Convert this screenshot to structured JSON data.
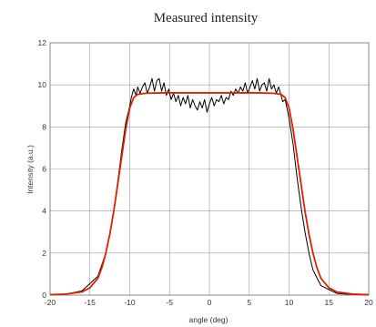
{
  "chart_data": {
    "type": "line",
    "title": "Measured  intensity",
    "xlabel": "angle (deg)",
    "ylabel": "Intensity (a.u.)",
    "xlim": [
      -20,
      20
    ],
    "ylim": [
      0,
      12
    ],
    "xticks": [
      -20,
      -15,
      -10,
      -5,
      0,
      5,
      10,
      15,
      20
    ],
    "yticks": [
      0,
      2,
      4,
      6,
      8,
      10,
      12
    ],
    "grid": true,
    "series": [
      {
        "color": "#000000",
        "x": [
          -20,
          -18,
          -16,
          -14,
          -13,
          -12.5,
          -12,
          -11.5,
          -11,
          -10.5,
          -10,
          -9.8,
          -9.5,
          -9.2,
          -9,
          -8.7,
          -8.4,
          -8.1,
          -7.8,
          -7.5,
          -7.2,
          -6.9,
          -6.6,
          -6.3,
          -6,
          -5.7,
          -5.4,
          -5.1,
          -4.8,
          -4.5,
          -4.2,
          -3.9,
          -3.6,
          -3.3,
          -3,
          -2.7,
          -2.4,
          -2.1,
          -1.8,
          -1.5,
          -1.2,
          -0.9,
          -0.6,
          -0.3,
          0,
          0.3,
          0.6,
          0.9,
          1.2,
          1.5,
          1.8,
          2.1,
          2.4,
          2.7,
          3,
          3.3,
          3.6,
          3.9,
          4.2,
          4.5,
          4.8,
          5.1,
          5.4,
          5.7,
          6,
          6.3,
          6.6,
          6.9,
          7.2,
          7.5,
          7.8,
          8.1,
          8.4,
          8.7,
          9,
          9.2,
          9.5,
          9.8,
          10,
          10.5,
          11,
          11.5,
          12,
          12.5,
          13,
          14,
          16,
          18,
          20
        ],
        "y": [
          0.02,
          0.05,
          0.2,
          0.9,
          2.0,
          2.9,
          4.0,
          5.4,
          6.9,
          8.2,
          9.0,
          9.4,
          9.8,
          9.5,
          9.9,
          9.6,
          9.9,
          10.1,
          9.6,
          9.9,
          10.3,
          9.7,
          10.2,
          10.3,
          9.7,
          10.1,
          9.5,
          9.8,
          9.3,
          9.6,
          9.2,
          9.5,
          9.0,
          9.4,
          9.1,
          9.5,
          8.9,
          9.3,
          9.0,
          8.8,
          9.2,
          8.9,
          9.3,
          8.7,
          9.1,
          9.4,
          9.0,
          9.3,
          9.2,
          9.5,
          9.1,
          9.4,
          9.3,
          9.7,
          9.5,
          9.8,
          9.6,
          9.9,
          9.7,
          10.1,
          9.6,
          9.9,
          10.2,
          9.8,
          10.3,
          9.7,
          10.0,
          10.1,
          9.7,
          10.3,
          9.8,
          10.0,
          9.6,
          9.9,
          9.5,
          9.2,
          9.3,
          8.8,
          8.4,
          7.2,
          5.6,
          4.2,
          3.0,
          2.0,
          1.2,
          0.45,
          0.08,
          0.03,
          0.01
        ]
      },
      {
        "color": "#e02000",
        "x": [
          -20,
          -18,
          -16,
          -15,
          -14,
          -13.5,
          -13,
          -12.5,
          -12,
          -11.5,
          -11,
          -10.5,
          -10,
          -9.5,
          -9,
          -8,
          -6,
          -4,
          -2,
          0,
          2,
          4,
          6,
          8,
          9,
          9.5,
          10,
          10.5,
          11,
          11.5,
          12,
          12.5,
          13,
          13.5,
          14,
          15,
          16,
          18,
          20
        ],
        "y": [
          0.02,
          0.05,
          0.15,
          0.35,
          0.8,
          1.3,
          2.0,
          2.9,
          4.0,
          5.3,
          6.6,
          7.9,
          8.9,
          9.4,
          9.55,
          9.6,
          9.62,
          9.62,
          9.62,
          9.62,
          9.62,
          9.62,
          9.62,
          9.6,
          9.55,
          9.4,
          8.9,
          7.9,
          6.6,
          5.3,
          4.0,
          2.9,
          2.0,
          1.3,
          0.8,
          0.35,
          0.15,
          0.05,
          0.02
        ]
      }
    ]
  }
}
